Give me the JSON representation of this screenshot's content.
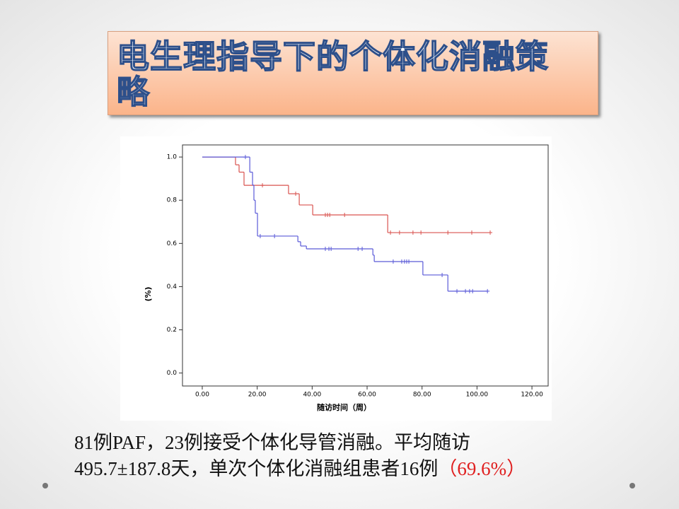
{
  "slide": {
    "title": "电生理指导下的个体化消融策略",
    "caption": {
      "line1": "81例PAF，23例接受个体化导管消融。平均随访",
      "line2": "495.7±187.8天，单次个体化消融组患者16例",
      "highlight": "（69.6%）"
    }
  },
  "chart_data": {
    "type": "line",
    "step": true,
    "x_label": "随访时间（周）",
    "y_label": "(%)",
    "xlim": [
      -7.2,
      125.9
    ],
    "ylim": [
      -0.06,
      1.056
    ],
    "xticks": [
      {
        "value": 0,
        "label": "0.00"
      },
      {
        "value": 20,
        "label": "20.00"
      },
      {
        "value": 40,
        "label": "40.00"
      },
      {
        "value": 60,
        "label": "60.00"
      },
      {
        "value": 80,
        "label": "80.00"
      },
      {
        "value": 100,
        "label": "100.00"
      },
      {
        "value": 120,
        "label": "120.00"
      }
    ],
    "yticks": [
      {
        "value": 0,
        "label": "0.0"
      },
      {
        "value": 0.2,
        "label": "0.2"
      },
      {
        "value": 0.4,
        "label": "0.4"
      },
      {
        "value": 0.6,
        "label": "0.6"
      },
      {
        "value": 0.8,
        "label": "0.8"
      },
      {
        "value": 1,
        "label": "1.0"
      }
    ],
    "series": [
      {
        "color": "#d9534f",
        "x": [
          0,
          12.1,
          13.4,
          15.2,
          31.4,
          35.3,
          40.2,
          67.5,
          104.8
        ],
        "values": [
          1.0,
          0.964,
          0.93,
          0.869,
          0.83,
          0.778,
          0.732,
          0.65,
          0.65
        ],
        "censor_x": [
          21.9,
          34.0,
          44.8,
          45.6,
          46.4,
          51.8,
          68.5,
          71.8,
          76.7,
          79.6,
          89.4,
          98.1,
          104.8
        ],
        "censor_values": [
          0.869,
          0.83,
          0.732,
          0.732,
          0.732,
          0.732,
          0.65,
          0.65,
          0.65,
          0.65,
          0.65,
          0.65,
          0.65
        ]
      },
      {
        "color": "#5a5ad8",
        "x": [
          0,
          17.3,
          18.3,
          18.8,
          19.3,
          20.1,
          34.8,
          35.8,
          37.9,
          62.1,
          62.6,
          80.3,
          89.4,
          103.8
        ],
        "values": [
          1.0,
          0.93,
          0.87,
          0.8,
          0.74,
          0.634,
          0.608,
          0.588,
          0.575,
          0.546,
          0.516,
          0.454,
          0.379,
          0.379
        ],
        "censor_x": [
          15.7,
          21.1,
          26.3,
          44.8,
          46.1,
          46.9,
          56.7,
          58.2,
          69.5,
          72.6,
          73.6,
          74.4,
          75.2,
          87.3,
          92.7,
          95.8,
          97.3,
          98.4,
          103.8
        ],
        "censor_values": [
          1.0,
          0.634,
          0.634,
          0.575,
          0.575,
          0.575,
          0.575,
          0.575,
          0.516,
          0.516,
          0.516,
          0.516,
          0.516,
          0.454,
          0.379,
          0.379,
          0.379,
          0.379,
          0.379
        ]
      }
    ]
  }
}
